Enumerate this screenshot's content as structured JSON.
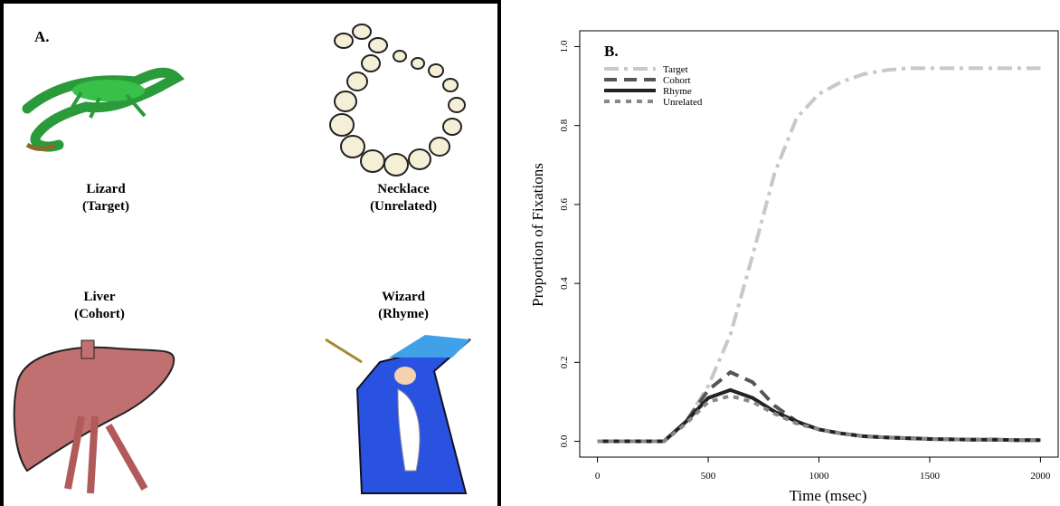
{
  "panel_a": {
    "label": "A.",
    "items": [
      {
        "name": "Lizard",
        "role": "(Target)"
      },
      {
        "name": "Necklace",
        "role": "(Unrelated)"
      },
      {
        "name": "Liver",
        "role": "(Cohort)"
      },
      {
        "name": "Wizard",
        "role": "(Rhyme)"
      }
    ]
  },
  "chart_data": {
    "type": "line",
    "panel_label": "B.",
    "x_label": "Time (msec)",
    "y_label": "Proportion of Fixations",
    "x": [
      0,
      100,
      200,
      300,
      400,
      500,
      600,
      700,
      800,
      900,
      1000,
      1100,
      1200,
      1300,
      1400,
      1500,
      1600,
      1700,
      1800,
      1900,
      2000
    ],
    "series": [
      {
        "name": "Target",
        "color": "#c8c8c8",
        "linestyle": "dashdot",
        "values": [
          0,
          0,
          0,
          0,
          0.05,
          0.14,
          0.27,
          0.47,
          0.68,
          0.82,
          0.88,
          0.91,
          0.93,
          0.94,
          0.945,
          0.945,
          0.945,
          0.945,
          0.945,
          0.945,
          0.945
        ]
      },
      {
        "name": "Cohort",
        "color": "#555555",
        "linestyle": "dashed",
        "values": [
          0,
          0,
          0,
          0,
          0.05,
          0.13,
          0.175,
          0.15,
          0.09,
          0.05,
          0.03,
          0.02,
          0.013,
          0.01,
          0.008,
          0.006,
          0.005,
          0.004,
          0.004,
          0.003,
          0.003
        ]
      },
      {
        "name": "Rhyme",
        "color": "#222222",
        "linestyle": "solid",
        "values": [
          0,
          0,
          0,
          0,
          0.05,
          0.11,
          0.13,
          0.11,
          0.075,
          0.05,
          0.03,
          0.02,
          0.013,
          0.01,
          0.008,
          0.006,
          0.005,
          0.004,
          0.004,
          0.003,
          0.003
        ]
      },
      {
        "name": "Unrelated",
        "color": "#888888",
        "linestyle": "dotted",
        "values": [
          0,
          0,
          0,
          0,
          0.045,
          0.1,
          0.115,
          0.1,
          0.07,
          0.045,
          0.03,
          0.02,
          0.013,
          0.01,
          0.008,
          0.006,
          0.005,
          0.004,
          0.004,
          0.003,
          0.003
        ]
      }
    ],
    "xlim": [
      -80,
      2080
    ],
    "ylim": [
      -0.04,
      1.04
    ],
    "xticks": [
      0,
      500,
      1000,
      1500,
      2000
    ],
    "yticks": [
      {
        "value": 0,
        "label": "0.0"
      },
      0.2,
      0.4,
      0.6,
      0.8,
      {
        "value": 1,
        "label": "1.0"
      }
    ],
    "legend": "top-left"
  }
}
